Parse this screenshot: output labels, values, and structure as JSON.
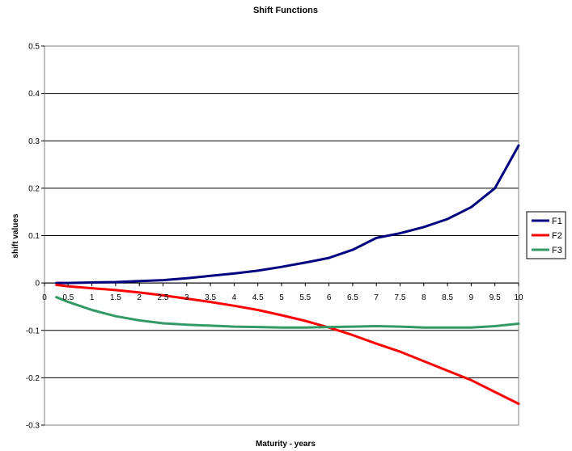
{
  "chart_data": {
    "type": "line",
    "title": "Shift Functions",
    "xlabel": "Maturity - years",
    "ylabel": "shift values",
    "xlim": [
      0,
      10
    ],
    "ylim": [
      -0.3,
      0.5
    ],
    "x_ticks": [
      "0",
      "0.5",
      "1",
      "1.5",
      "2",
      "2.5",
      "3",
      "3.5",
      "4",
      "4.5",
      "5",
      "5.5",
      "6",
      "6.5",
      "7",
      "7.5",
      "8",
      "8.5",
      "9",
      "9.5",
      "10"
    ],
    "y_ticks": [
      "0.5",
      "0.4",
      "0.3",
      "0.2",
      "0.1",
      "0",
      "-0.1",
      "-0.2",
      "-0.3"
    ],
    "grid": "horizontal",
    "legend_position": "right",
    "x": [
      0.25,
      0.5,
      1,
      1.5,
      2,
      2.5,
      3,
      3.5,
      4,
      4.5,
      5,
      5.5,
      6,
      6.5,
      7,
      7.5,
      8,
      8.5,
      9,
      9.5,
      10
    ],
    "series": [
      {
        "name": "F1",
        "color": "#000080",
        "values": [
          0.0,
          0.0,
          0.001,
          0.002,
          0.004,
          0.006,
          0.01,
          0.015,
          0.02,
          0.026,
          0.034,
          0.043,
          0.053,
          0.07,
          0.095,
          0.105,
          0.118,
          0.135,
          0.16,
          0.2,
          0.29
        ]
      },
      {
        "name": "F2",
        "color": "#ff0000",
        "values": [
          -0.004,
          -0.007,
          -0.011,
          -0.015,
          -0.02,
          -0.026,
          -0.033,
          -0.04,
          -0.048,
          -0.057,
          -0.068,
          -0.08,
          -0.094,
          -0.11,
          -0.128,
          -0.145,
          -0.165,
          -0.185,
          -0.205,
          -0.23,
          -0.255
        ]
      },
      {
        "name": "F3",
        "color": "#339966",
        "values": [
          -0.03,
          -0.04,
          -0.057,
          -0.07,
          -0.079,
          -0.085,
          -0.088,
          -0.09,
          -0.092,
          -0.093,
          -0.094,
          -0.094,
          -0.093,
          -0.092,
          -0.091,
          -0.092,
          -0.094,
          -0.094,
          -0.094,
          -0.091,
          -0.086
        ]
      }
    ]
  }
}
